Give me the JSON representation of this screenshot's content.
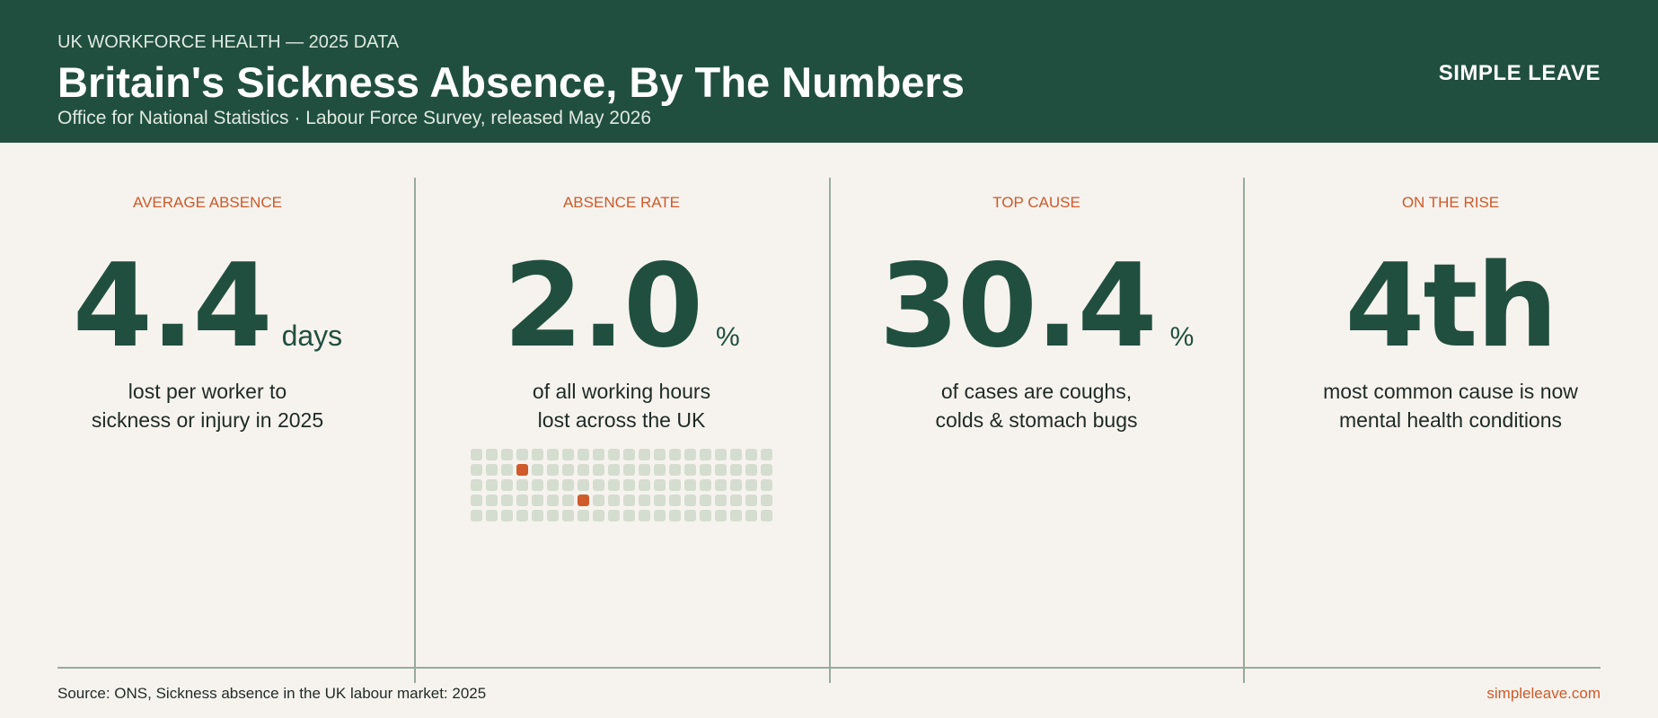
{
  "header": {
    "kicker": "UK WORKFORCE HEALTH — 2025 DATA",
    "title": "Britain's Sickness Absence, By The Numbers",
    "subtitle": "Office for National Statistics · Labour Force Survey, released May 2026",
    "brand": "SIMPLE LEAVE"
  },
  "stats": [
    {
      "label": "AVERAGE ABSENCE",
      "value": "4.4",
      "unit": "days",
      "desc": [
        "lost per worker to",
        "sickness or injury in 2025"
      ]
    },
    {
      "label": "ABSENCE RATE",
      "value": "2.0",
      "unit": "%",
      "desc": [
        "of all working hours",
        "lost across the UK"
      ]
    },
    {
      "label": "TOP CAUSE",
      "value": "30.4",
      "unit": "%",
      "desc": [
        "of cases are coughs,",
        "colds & stomach bugs"
      ]
    },
    {
      "label": "ON THE RISE",
      "value": "4th",
      "unit": "",
      "desc": [
        "most common cause is now",
        "mental health conditions"
      ]
    }
  ],
  "waffle": {
    "total": 100,
    "highlighted": 2
  },
  "footer": {
    "source": "Source: ONS, Sickness absence in the UK labour market: 2025",
    "url": "simpleleave.com"
  },
  "colors": {
    "header_bg": "#214f3f",
    "accent": "#cc5a2a",
    "background": "#f6f3ee",
    "number": "#214f3f",
    "divider": "#97ab9d"
  }
}
